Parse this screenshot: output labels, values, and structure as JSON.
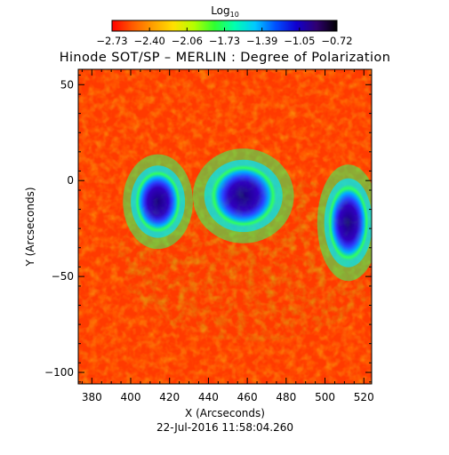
{
  "chart_data": {
    "type": "heatmap",
    "title": "Hinode SOT/SP – MERLIN : Degree of Polarization",
    "xlabel": "X (Arcseconds)",
    "ylabel": "Y (Arcseconds)",
    "xlim": [
      373,
      524
    ],
    "ylim": [
      -106,
      58
    ],
    "xticks": [
      380,
      400,
      420,
      440,
      460,
      480,
      500,
      520
    ],
    "yticks": [
      50,
      0,
      -50,
      -100
    ],
    "date": "22-Jul-2016 11:58:04.260",
    "colorbar": {
      "label": "Log",
      "label_sub": "10",
      "ticks": [
        "−2.73",
        "−2.40",
        "−2.06",
        "−1.73",
        "−1.39",
        "−1.05",
        "−0.72"
      ],
      "range": [
        -2.73,
        -0.72
      ],
      "colors": [
        "#ff0000",
        "#ff5a00",
        "#ffa000",
        "#ffe000",
        "#b4ff00",
        "#30ff30",
        "#00ffb0",
        "#00c8ff",
        "#0050ff",
        "#1000d0",
        "#300070",
        "#000000"
      ]
    },
    "features": [
      {
        "x": 414,
        "y": -11,
        "rx": 9,
        "ry": 13,
        "peak": -0.85
      },
      {
        "x": 458,
        "y": -8,
        "rx": 13,
        "ry": 13,
        "peak": -0.75
      },
      {
        "x": 512,
        "y": -22,
        "rx": 8,
        "ry": 16,
        "peak": -0.8
      }
    ],
    "background_level": -2.5
  }
}
